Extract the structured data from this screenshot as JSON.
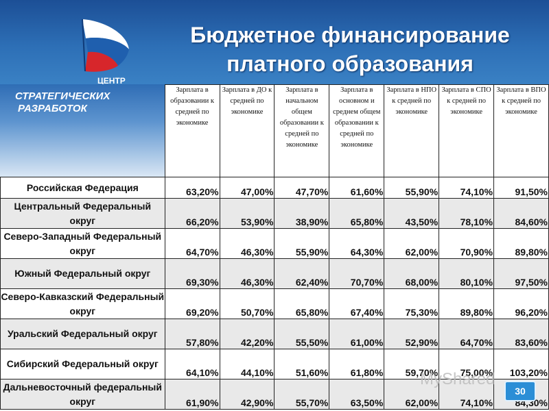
{
  "title_line1": "Бюджетное финансирование",
  "title_line2": "платного образования",
  "logo": {
    "top_text": "ЦЕНТР",
    "line1": "СТРАТЕГИЧЕСКИХ",
    "line2": "РАЗРАБОТОК"
  },
  "columns": [
    "Зарплата в образовании к средней по экономике",
    "Зарплата в ДО к средней по экономике",
    "Зарплата в начальном общем образовании к средней по экономике",
    "Зарплата в основном и среднем общем образовании к средней по экономике",
    "Зарплата в НПО к средней по экономике",
    "Зарплата в СПО к средней по экономике",
    "Зарплата в ВПО к средней по экономике"
  ],
  "rows": [
    {
      "region": "Российская Федерация",
      "values": [
        "63,20%",
        "47,00%",
        "47,70%",
        "61,60%",
        "55,90%",
        "74,10%",
        "91,50%"
      ]
    },
    {
      "region": "Центральный Федеральный округ",
      "values": [
        "66,20%",
        "53,90%",
        "38,90%",
        "65,80%",
        "43,50%",
        "78,10%",
        "84,60%"
      ]
    },
    {
      "region": "Северо-Западный Федеральный округ",
      "values": [
        "64,70%",
        "46,30%",
        "55,90%",
        "64,30%",
        "62,00%",
        "70,90%",
        "89,80%"
      ]
    },
    {
      "region": "Южный Федеральный округ",
      "values": [
        "69,30%",
        "46,30%",
        "62,40%",
        "70,70%",
        "68,00%",
        "80,10%",
        "97,50%"
      ]
    },
    {
      "region": "Северо-Кавказский Федеральный округ",
      "values": [
        "69,20%",
        "50,70%",
        "65,80%",
        "67,40%",
        "75,30%",
        "89,80%",
        "96,20%"
      ]
    },
    {
      "region": "Уральский Федеральный округ",
      "values": [
        "57,80%",
        "42,20%",
        "55,50%",
        "61,00%",
        "52,90%",
        "64,70%",
        "83,60%"
      ]
    },
    {
      "region": "Сибирский Федеральный округ",
      "values": [
        "64,10%",
        "44,10%",
        "51,60%",
        "61,80%",
        "59,70%",
        "75,00%",
        "103,20%"
      ]
    },
    {
      "region": "Дальневосточный федеральный округ",
      "values": [
        "61,90%",
        "42,90%",
        "55,70%",
        "63,50%",
        "62,00%",
        "74,10%",
        "84,30%"
      ]
    }
  ],
  "watermark": "MyShared",
  "page_number": "30",
  "colors": {
    "header_blue": "#2d6fb6",
    "row_gray": "#e9e9e9",
    "flag_red": "#d7262b",
    "flag_blue": "#1f5fae"
  }
}
